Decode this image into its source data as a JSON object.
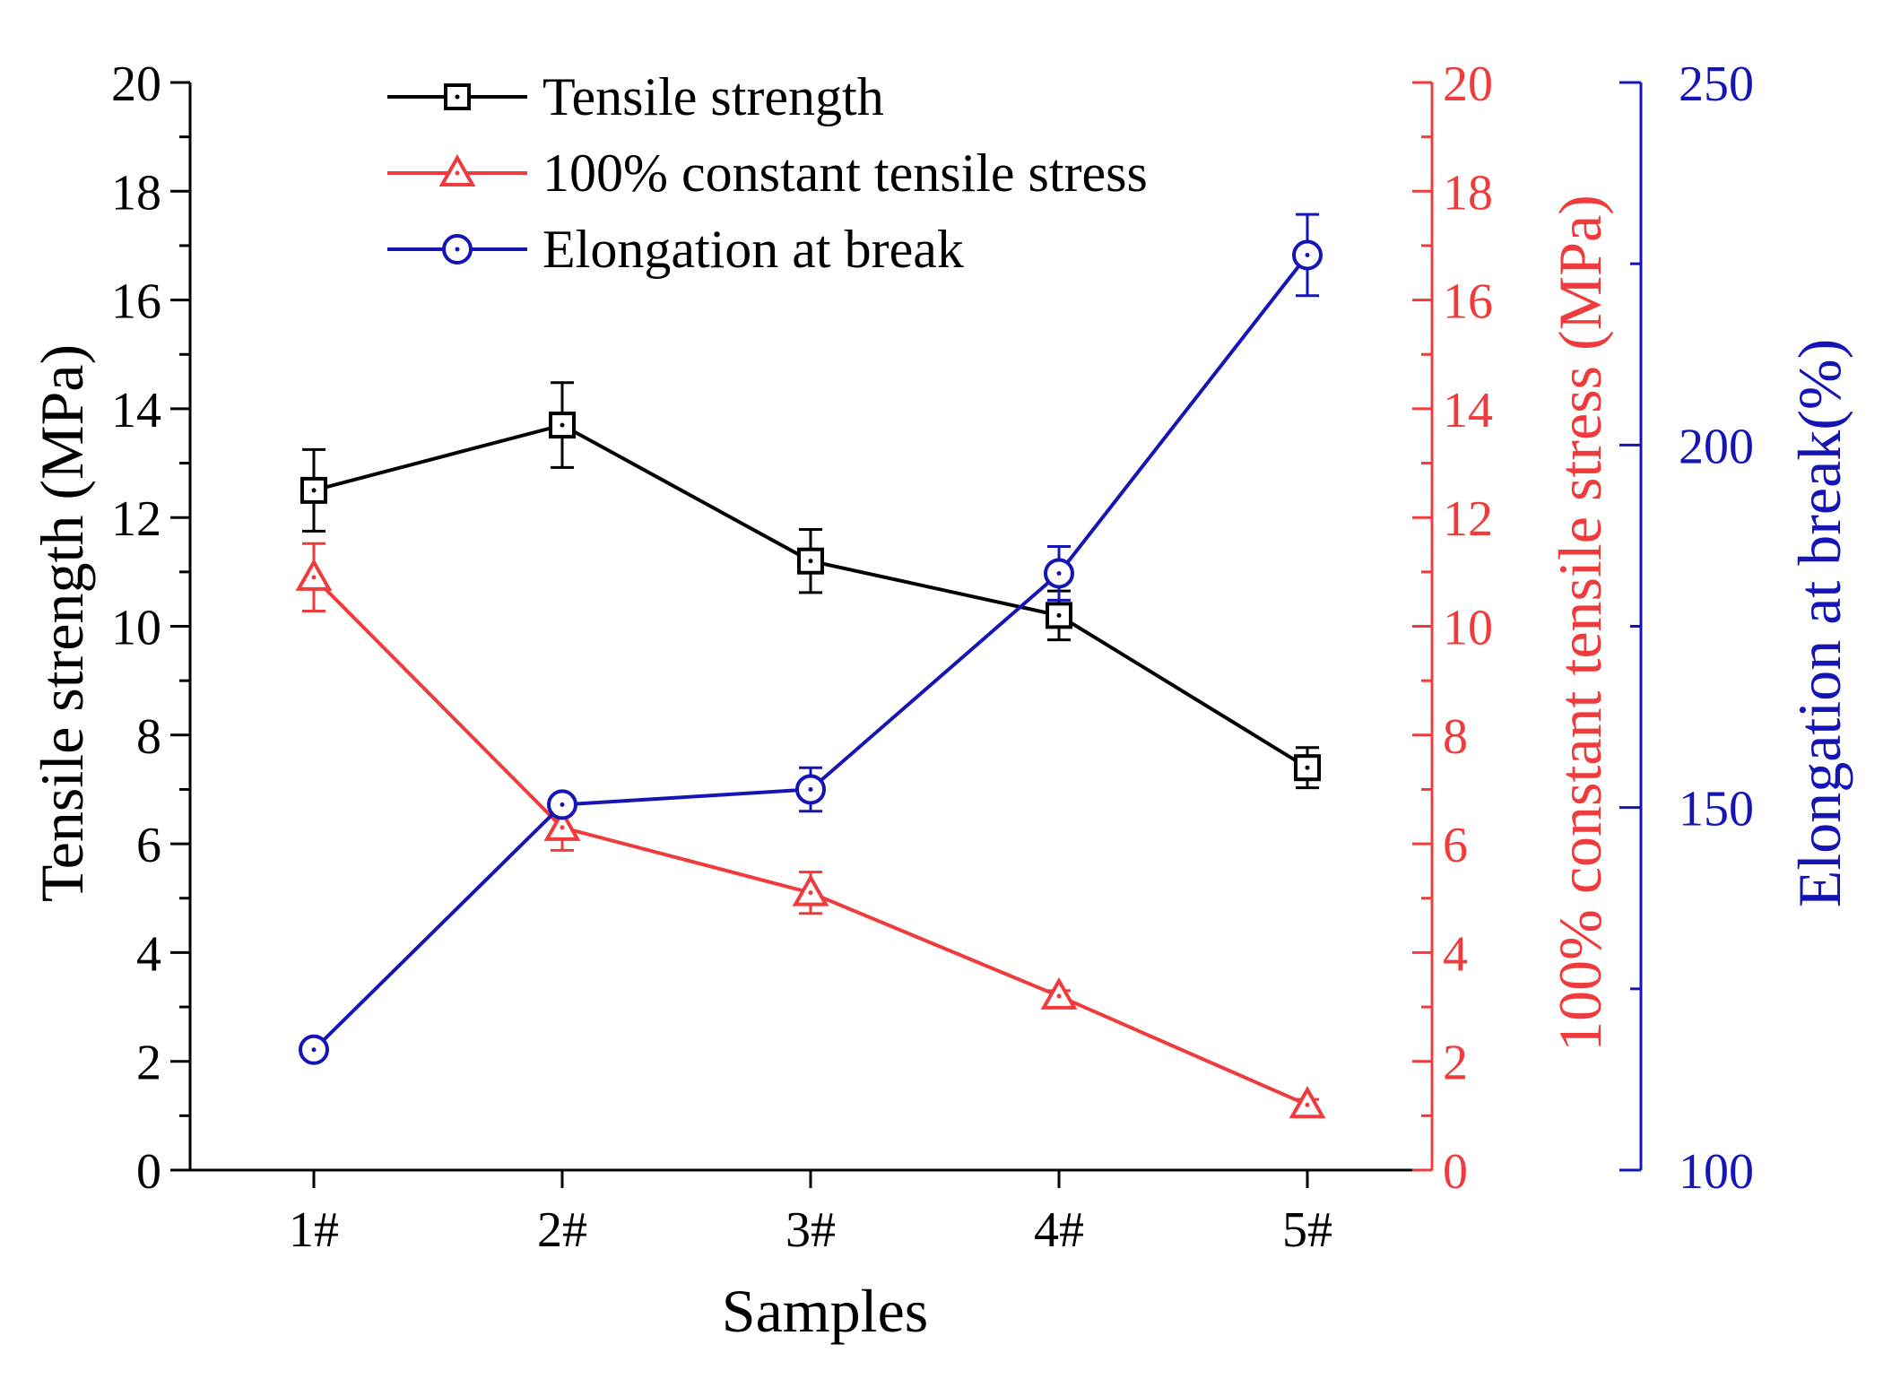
{
  "chart_data": {
    "type": "line",
    "title": "",
    "xlabel": "Samples",
    "categories": [
      "1#",
      "2#",
      "3#",
      "4#",
      "5#"
    ],
    "axes": {
      "left": {
        "label": "Tensile strength (MPa)",
        "range": [
          0,
          20
        ],
        "ticks": [
          "0",
          "2",
          "4",
          "6",
          "8",
          "10",
          "12",
          "14",
          "16",
          "18",
          "20"
        ],
        "color": "#000000"
      },
      "right1": {
        "label": "100% constant tensile stress (MPa)",
        "range": [
          0,
          20
        ],
        "ticks": [
          "0",
          "2",
          "4",
          "6",
          "8",
          "10",
          "12",
          "14",
          "16",
          "18",
          "20"
        ],
        "color": "#ef3b3b"
      },
      "right2": {
        "label": "Elongation at break(%)",
        "range": [
          100,
          250
        ],
        "ticks": [
          "100",
          "150",
          "200",
          "250"
        ],
        "color": "#1515b5"
      }
    },
    "series": [
      {
        "name": "Tensile strength",
        "axis": "left",
        "marker": "square",
        "color": "#000000",
        "values": [
          12.5,
          13.7,
          11.2,
          10.2,
          7.4
        ],
        "errors": [
          0.75,
          0.78,
          0.58,
          0.45,
          0.37
        ]
      },
      {
        "name": "100% constant tensile stress",
        "axis": "right1",
        "marker": "triangle",
        "color": "#ef3b3b",
        "values": [
          10.9,
          6.3,
          5.1,
          3.2,
          1.2
        ],
        "errors": [
          0.62,
          0.42,
          0.38,
          0.1,
          0.1
        ]
      },
      {
        "name": "Elongation at break",
        "axis": "right2",
        "marker": "circle",
        "color": "#1515b5",
        "values": [
          116.6,
          150.4,
          152.5,
          182.3,
          226.2
        ],
        "errors": [
          0.4,
          1.1,
          3.0,
          3.7,
          5.6
        ]
      }
    ],
    "legend": {
      "position": "top-left"
    },
    "grid": false
  }
}
